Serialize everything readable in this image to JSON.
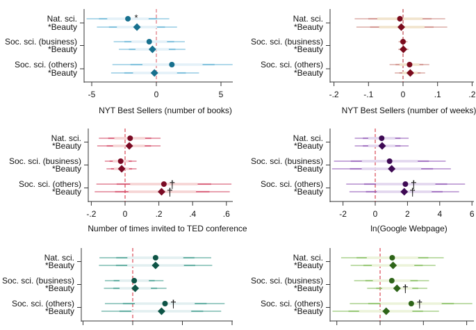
{
  "chart_data": [
    {
      "type": "coefficient-plot",
      "xlabel": "NYT Best Sellers (number of books)",
      "xticks": [
        -5,
        0,
        5
      ],
      "xtick_labels": [
        "-5",
        "0",
        "5"
      ],
      "reference_line": 0,
      "colors": {
        "marker": "#17708e",
        "line": "#5fb0d4",
        "band": "#e4f1f8",
        "ref": "#d9535f"
      },
      "categories": [
        "Nat. sci.",
        "*Beauty",
        "Soc. sci. (business)",
        "*Beauty",
        "Soc. sci. (others)",
        "*Beauty"
      ],
      "points": [
        {
          "estimate": -2.2,
          "ci": [
            -5.4,
            1.0
          ],
          "marker": "circle",
          "sig": "*"
        },
        {
          "estimate": -1.5,
          "ci": [
            -4.6,
            1.6
          ],
          "marker": "diamond",
          "sig": ""
        },
        {
          "estimate": -0.55,
          "ci": [
            -3.3,
            2.2
          ],
          "marker": "circle",
          "sig": ""
        },
        {
          "estimate": -0.3,
          "ci": [
            -2.9,
            2.25
          ],
          "marker": "diamond",
          "sig": ""
        },
        {
          "estimate": 1.2,
          "ci": [
            -3.4,
            5.9
          ],
          "marker": "circle",
          "sig": ""
        },
        {
          "estimate": -0.15,
          "ci": [
            -3.5,
            3.3
          ],
          "marker": "diamond",
          "sig": ""
        }
      ]
    },
    {
      "type": "coefficient-plot",
      "xlabel": "NYT Best Sellers (number of weeks)",
      "xticks": [
        -0.2,
        -0.1,
        0,
        0.1,
        0.2
      ],
      "xtick_labels": [
        "-.2",
        "-.1",
        "0",
        ".1",
        ".2"
      ],
      "reference_line": 0,
      "colors": {
        "marker": "#7a0a1c",
        "line": "#c98078",
        "band": "#f1e4cc",
        "ref": "#b0202a"
      },
      "categories": [
        "Nat. sci.",
        "*Beauty",
        "Soc. sci. (business)",
        "*Beauty",
        "Soc. sci. (others)",
        "*Beauty"
      ],
      "points": [
        {
          "estimate": -0.009,
          "ci": [
            -0.14,
            0.122
          ],
          "marker": "circle",
          "sig": ""
        },
        {
          "estimate": -0.005,
          "ci": [
            -0.135,
            0.128
          ],
          "marker": "diamond",
          "sig": ""
        },
        {
          "estimate": 0.0,
          "ci": [
            -0.013,
            0.013
          ],
          "marker": "circle",
          "sig": ""
        },
        {
          "estimate": 0.001,
          "ci": [
            -0.014,
            0.016
          ],
          "marker": "diamond",
          "sig": ""
        },
        {
          "estimate": 0.019,
          "ci": [
            -0.039,
            0.076
          ],
          "marker": "circle",
          "sig": ""
        },
        {
          "estimate": 0.021,
          "ci": [
            -0.024,
            0.064
          ],
          "marker": "diamond",
          "sig": ""
        }
      ]
    },
    {
      "type": "coefficient-plot",
      "xlabel": "Number of times invited to TED conference",
      "xticks": [
        -0.2,
        0,
        0.2,
        0.4,
        0.6
      ],
      "xtick_labels": [
        "-.2",
        "0",
        ".2",
        ".4",
        ".6"
      ],
      "reference_line": 0,
      "colors": {
        "marker": "#7a0a24",
        "line": "#d2405e",
        "band": "#f6d4d4",
        "ref": "#d02030"
      },
      "categories": [
        "Nat. sci.",
        "*Beauty",
        "Soc. sci. (business)",
        "*Beauty",
        "Soc. sci. (others)",
        "*Beauty"
      ],
      "points": [
        {
          "estimate": 0.03,
          "ci": [
            -0.155,
            0.21
          ],
          "marker": "circle",
          "sig": ""
        },
        {
          "estimate": 0.025,
          "ci": [
            -0.165,
            0.21
          ],
          "marker": "diamond",
          "sig": ""
        },
        {
          "estimate": -0.026,
          "ci": [
            -0.12,
            0.068
          ],
          "marker": "circle",
          "sig": ""
        },
        {
          "estimate": -0.02,
          "ci": [
            -0.11,
            0.068
          ],
          "marker": "diamond",
          "sig": ""
        },
        {
          "estimate": 0.23,
          "ci": [
            -0.17,
            0.63
          ],
          "marker": "circle",
          "sig": "†"
        },
        {
          "estimate": 0.216,
          "ci": [
            -0.18,
            0.62
          ],
          "marker": "diamond",
          "sig": "†"
        }
      ]
    },
    {
      "type": "coefficient-plot",
      "xlabel": "ln(Google Webpage)",
      "xticks": [
        -2,
        0,
        2,
        4,
        6
      ],
      "xtick_labels": [
        "-2",
        "0",
        "2",
        "4",
        "6"
      ],
      "reference_line": 0,
      "colors": {
        "marker": "#3e0a54",
        "line": "#8c52b4",
        "band": "#e2d6ee",
        "ref": "#d02030"
      },
      "categories": [
        "Nat. sci.",
        "*Beauty",
        "Soc. sci. (business)",
        "*Beauty",
        "Soc. sci. (others)",
        "*Beauty"
      ],
      "points": [
        {
          "estimate": 0.4,
          "ci": [
            -1.27,
            2.07
          ],
          "marker": "circle",
          "sig": ""
        },
        {
          "estimate": 0.43,
          "ci": [
            -1.27,
            2.07
          ],
          "marker": "diamond",
          "sig": ""
        },
        {
          "estimate": 0.89,
          "ci": [
            -2.56,
            4.37
          ],
          "marker": "circle",
          "sig": ""
        },
        {
          "estimate": 1.02,
          "ci": [
            -2.68,
            4.69
          ],
          "marker": "diamond",
          "sig": ""
        },
        {
          "estimate": 1.87,
          "ci": [
            -1.8,
            5.57
          ],
          "marker": "circle",
          "sig": "†"
        },
        {
          "estimate": 1.8,
          "ci": [
            -1.6,
            5.2
          ],
          "marker": "diamond",
          "sig": "†"
        }
      ]
    },
    {
      "type": "coefficient-plot",
      "xlabel": "",
      "xticks": [
        -1,
        0,
        1,
        2
      ],
      "xtick_labels": [
        "",
        "",
        "",
        ""
      ],
      "reference_line": 0,
      "colors": {
        "marker": "#0e5446",
        "line": "#3a9a8a",
        "band": "#e2eff0",
        "ref": "#d02030"
      },
      "categories": [
        "Nat. sci.",
        "*Beauty",
        "Soc. sci. (business)",
        "*Beauty",
        "Soc. sci. (others)",
        "*Beauty"
      ],
      "points": [
        {
          "estimate": 0.46,
          "ci": [
            -0.67,
            1.58
          ],
          "marker": "circle",
          "sig": ""
        },
        {
          "estimate": 0.46,
          "ci": [
            -0.68,
            1.6
          ],
          "marker": "diamond",
          "sig": ""
        },
        {
          "estimate": 0.03,
          "ci": [
            -0.56,
            0.62
          ],
          "marker": "circle",
          "sig": ""
        },
        {
          "estimate": 0.05,
          "ci": [
            -0.58,
            0.68
          ],
          "marker": "diamond",
          "sig": ""
        },
        {
          "estimate": 0.65,
          "ci": [
            -0.56,
            1.85
          ],
          "marker": "circle",
          "sig": "†"
        },
        {
          "estimate": 0.58,
          "ci": [
            -0.63,
            1.78
          ],
          "marker": "diamond",
          "sig": ""
        }
      ]
    },
    {
      "type": "coefficient-plot",
      "xlabel": "",
      "xticks": [
        -1,
        0,
        1,
        2
      ],
      "xtick_labels": [
        "",
        "",
        "",
        ""
      ],
      "reference_line": 0,
      "colors": {
        "marker": "#2e6418",
        "line": "#7cba52",
        "band": "#ecf3da",
        "ref": "#d02030"
      },
      "categories": [
        "Nat. sci.",
        "*Beauty",
        "Soc. sci. (business)",
        "*Beauty",
        "Soc. sci. (others)",
        "*Beauty"
      ],
      "points": [
        {
          "estimate": 0.28,
          "ci": [
            -0.9,
            1.47
          ],
          "marker": "circle",
          "sig": ""
        },
        {
          "estimate": 0.3,
          "ci": [
            -0.68,
            1.28
          ],
          "marker": "diamond",
          "sig": ""
        },
        {
          "estimate": 0.27,
          "ci": [
            -0.6,
            1.13
          ],
          "marker": "circle",
          "sig": ""
        },
        {
          "estimate": 0.39,
          "ci": [
            -0.3,
            1.09
          ],
          "marker": "diamond",
          "sig": "†"
        },
        {
          "estimate": 0.72,
          "ci": [
            -0.7,
            2.13
          ],
          "marker": "circle",
          "sig": "†"
        },
        {
          "estimate": 0.14,
          "ci": [
            -1.1,
            1.36
          ],
          "marker": "diamond",
          "sig": ""
        }
      ]
    }
  ]
}
